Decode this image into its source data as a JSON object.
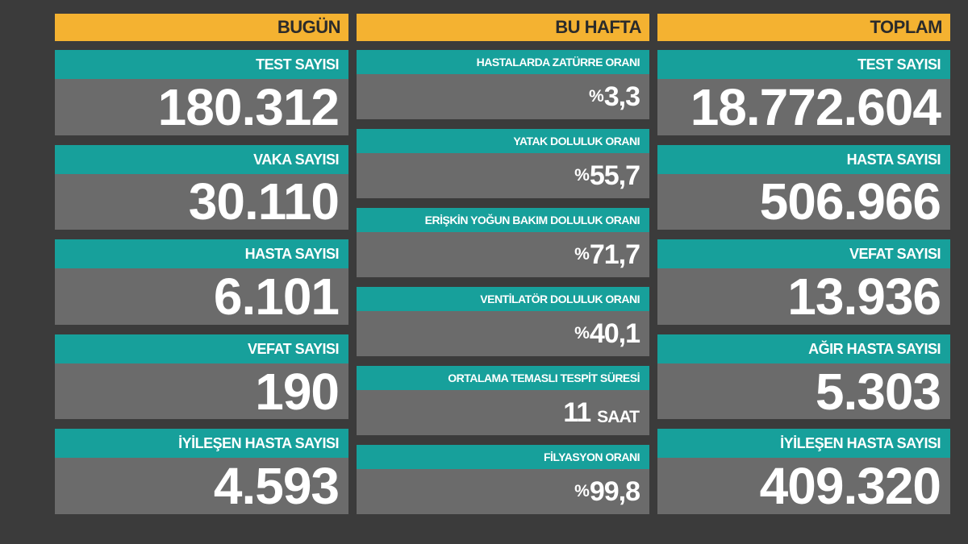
{
  "columns": [
    {
      "header": "BUGÜN",
      "cards": [
        {
          "label": "TEST SAYISI",
          "value": "180.312"
        },
        {
          "label": "VAKA SAYISI",
          "value": "30.110"
        },
        {
          "label": "HASTA SAYISI",
          "value": "6.101"
        },
        {
          "label": "VEFAT SAYISI",
          "value": "190"
        },
        {
          "label": "İYİLEŞEN HASTA SAYISI",
          "value": "4.593"
        }
      ]
    },
    {
      "header": "BU HAFTA",
      "cards": [
        {
          "label": "HASTALARDA ZATÜRRE ORANI",
          "prefix": "%",
          "value": "3,3"
        },
        {
          "label": "YATAK DOLULUK ORANI",
          "prefix": "%",
          "value": "55,7"
        },
        {
          "label": "ERİŞKİN YOĞUN BAKIM DOLULUK ORANI",
          "prefix": "%",
          "value": "71,7"
        },
        {
          "label": "VENTİLATÖR DOLULUK ORANI",
          "prefix": "%",
          "value": "40,1"
        },
        {
          "label": "ORTALAMA TEMASLI TESPİT SÜRESİ",
          "value": "11",
          "suffix": "SAAT"
        },
        {
          "label": "FİLYASYON ORANI",
          "prefix": "%",
          "value": "99,8"
        }
      ]
    },
    {
      "header": "TOPLAM",
      "cards": [
        {
          "label": "TEST SAYISI",
          "value": "18.772.604"
        },
        {
          "label": "HASTA SAYISI",
          "value": "506.966"
        },
        {
          "label": "VEFAT SAYISI",
          "value": "13.936"
        },
        {
          "label": "AĞIR HASTA SAYISI",
          "value": "5.303"
        },
        {
          "label": "İYİLEŞEN HASTA SAYISI",
          "value": "409.320"
        }
      ]
    }
  ]
}
